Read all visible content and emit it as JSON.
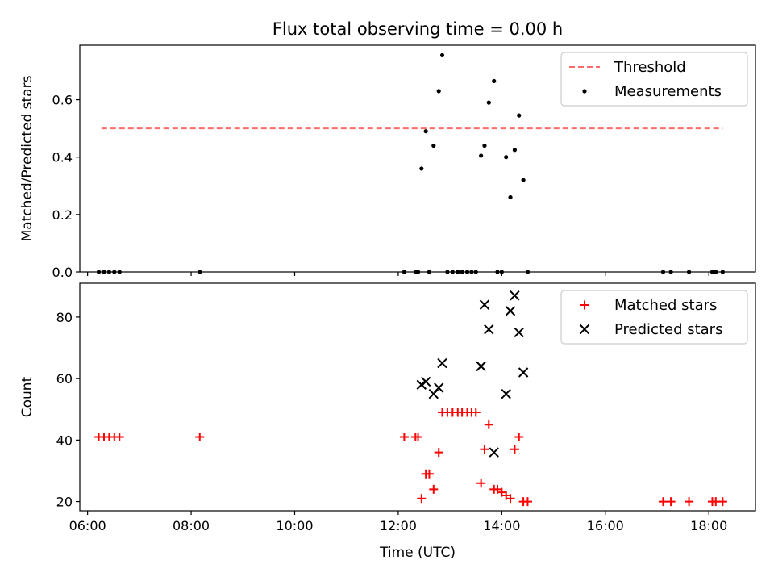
{
  "title": "Flux total observing time = 0.00 h",
  "chart_data": [
    {
      "type": "scatter",
      "ylabel": "Matched/Predicted stars",
      "xlabel": "",
      "xlim": [
        "05:51",
        "18:54"
      ],
      "ylim": [
        0,
        0.79
      ],
      "y_ticks": [
        0.0,
        0.2,
        0.4,
        0.6
      ],
      "y_tick_labels": [
        "0.0",
        "0.2",
        "0.4",
        "0.6"
      ],
      "legend_position": "top-right",
      "grid": false,
      "threshold": {
        "name": "Threshold",
        "value": 0.5,
        "x_start": "06:16",
        "x_end": "18:16",
        "color": "#ff6b6b"
      },
      "series": [
        {
          "name": "Measurements",
          "color": "#000000",
          "marker": "dot",
          "points": [
            {
              "x": "06:13",
              "y": 0
            },
            {
              "x": "06:19",
              "y": 0
            },
            {
              "x": "06:25",
              "y": 0
            },
            {
              "x": "06:31",
              "y": 0
            },
            {
              "x": "06:37",
              "y": 0
            },
            {
              "x": "08:10",
              "y": 0
            },
            {
              "x": "12:07",
              "y": 0
            },
            {
              "x": "12:20",
              "y": 0
            },
            {
              "x": "12:23",
              "y": 0
            },
            {
              "x": "12:27",
              "y": 0.36
            },
            {
              "x": "12:32",
              "y": 0.49
            },
            {
              "x": "12:36",
              "y": 0
            },
            {
              "x": "12:41",
              "y": 0.44
            },
            {
              "x": "12:47",
              "y": 0.63
            },
            {
              "x": "12:51",
              "y": 0.755
            },
            {
              "x": "12:57",
              "y": 0
            },
            {
              "x": "13:03",
              "y": 0
            },
            {
              "x": "13:09",
              "y": 0
            },
            {
              "x": "13:14",
              "y": 0
            },
            {
              "x": "13:20",
              "y": 0
            },
            {
              "x": "13:25",
              "y": 0
            },
            {
              "x": "13:30",
              "y": 0
            },
            {
              "x": "13:36",
              "y": 0.405
            },
            {
              "x": "13:40",
              "y": 0.44
            },
            {
              "x": "13:45",
              "y": 0.59
            },
            {
              "x": "13:51",
              "y": 0.665
            },
            {
              "x": "13:55",
              "y": 0
            },
            {
              "x": "14:00",
              "y": 0
            },
            {
              "x": "14:05",
              "y": 0.4
            },
            {
              "x": "14:10",
              "y": 0.26
            },
            {
              "x": "14:15",
              "y": 0.425
            },
            {
              "x": "14:20",
              "y": 0.545
            },
            {
              "x": "14:25",
              "y": 0.32
            },
            {
              "x": "14:30",
              "y": 0
            },
            {
              "x": "17:07",
              "y": 0
            },
            {
              "x": "17:16",
              "y": 0
            },
            {
              "x": "17:37",
              "y": 0
            },
            {
              "x": "18:04",
              "y": 0
            },
            {
              "x": "18:08",
              "y": 0
            },
            {
              "x": "18:16",
              "y": 0
            }
          ]
        }
      ]
    },
    {
      "type": "scatter",
      "ylabel": "Count",
      "xlabel": "Time (UTC)",
      "xlim": [
        "05:51",
        "18:54"
      ],
      "ylim": [
        17,
        91
      ],
      "y_ticks": [
        20,
        40,
        60,
        80
      ],
      "y_tick_labels": [
        "20",
        "40",
        "60",
        "80"
      ],
      "x_ticks": [
        "06:00",
        "08:00",
        "10:00",
        "12:00",
        "14:00",
        "16:00",
        "18:00"
      ],
      "x_tick_labels": [
        "06:00",
        "08:00",
        "10:00",
        "12:00",
        "14:00",
        "16:00",
        "18:00"
      ],
      "legend_position": "top-right",
      "grid": false,
      "series": [
        {
          "name": "Matched stars",
          "color": "#ff0000",
          "marker": "plus",
          "points": [
            {
              "x": "06:13",
              "y": 41
            },
            {
              "x": "06:19",
              "y": 41
            },
            {
              "x": "06:25",
              "y": 41
            },
            {
              "x": "06:31",
              "y": 41
            },
            {
              "x": "06:37",
              "y": 41
            },
            {
              "x": "08:10",
              "y": 41
            },
            {
              "x": "12:07",
              "y": 41
            },
            {
              "x": "12:20",
              "y": 41
            },
            {
              "x": "12:23",
              "y": 41
            },
            {
              "x": "12:27",
              "y": 21
            },
            {
              "x": "12:32",
              "y": 29
            },
            {
              "x": "12:36",
              "y": 29
            },
            {
              "x": "12:41",
              "y": 24
            },
            {
              "x": "12:47",
              "y": 36
            },
            {
              "x": "12:51",
              "y": 49
            },
            {
              "x": "12:57",
              "y": 49
            },
            {
              "x": "13:03",
              "y": 49
            },
            {
              "x": "13:09",
              "y": 49
            },
            {
              "x": "13:14",
              "y": 49
            },
            {
              "x": "13:20",
              "y": 49
            },
            {
              "x": "13:25",
              "y": 49
            },
            {
              "x": "13:30",
              "y": 49
            },
            {
              "x": "13:36",
              "y": 26
            },
            {
              "x": "13:40",
              "y": 37
            },
            {
              "x": "13:45",
              "y": 45
            },
            {
              "x": "13:51",
              "y": 24
            },
            {
              "x": "13:55",
              "y": 24
            },
            {
              "x": "14:00",
              "y": 23
            },
            {
              "x": "14:05",
              "y": 22
            },
            {
              "x": "14:10",
              "y": 21
            },
            {
              "x": "14:15",
              "y": 37
            },
            {
              "x": "14:20",
              "y": 41
            },
            {
              "x": "14:25",
              "y": 20
            },
            {
              "x": "14:30",
              "y": 20
            },
            {
              "x": "17:07",
              "y": 20
            },
            {
              "x": "17:16",
              "y": 20
            },
            {
              "x": "17:37",
              "y": 20
            },
            {
              "x": "18:04",
              "y": 20
            },
            {
              "x": "18:08",
              "y": 20
            },
            {
              "x": "18:16",
              "y": 20
            }
          ]
        },
        {
          "name": "Predicted stars",
          "color": "#000000",
          "marker": "x",
          "points": [
            {
              "x": "12:27",
              "y": 58
            },
            {
              "x": "12:32",
              "y": 59
            },
            {
              "x": "12:41",
              "y": 55
            },
            {
              "x": "12:47",
              "y": 57
            },
            {
              "x": "12:51",
              "y": 65
            },
            {
              "x": "13:36",
              "y": 64
            },
            {
              "x": "13:40",
              "y": 84
            },
            {
              "x": "13:45",
              "y": 76
            },
            {
              "x": "13:51",
              "y": 36
            },
            {
              "x": "14:05",
              "y": 55
            },
            {
              "x": "14:10",
              "y": 82
            },
            {
              "x": "14:15",
              "y": 87
            },
            {
              "x": "14:20",
              "y": 75
            },
            {
              "x": "14:25",
              "y": 62
            }
          ]
        }
      ]
    }
  ]
}
